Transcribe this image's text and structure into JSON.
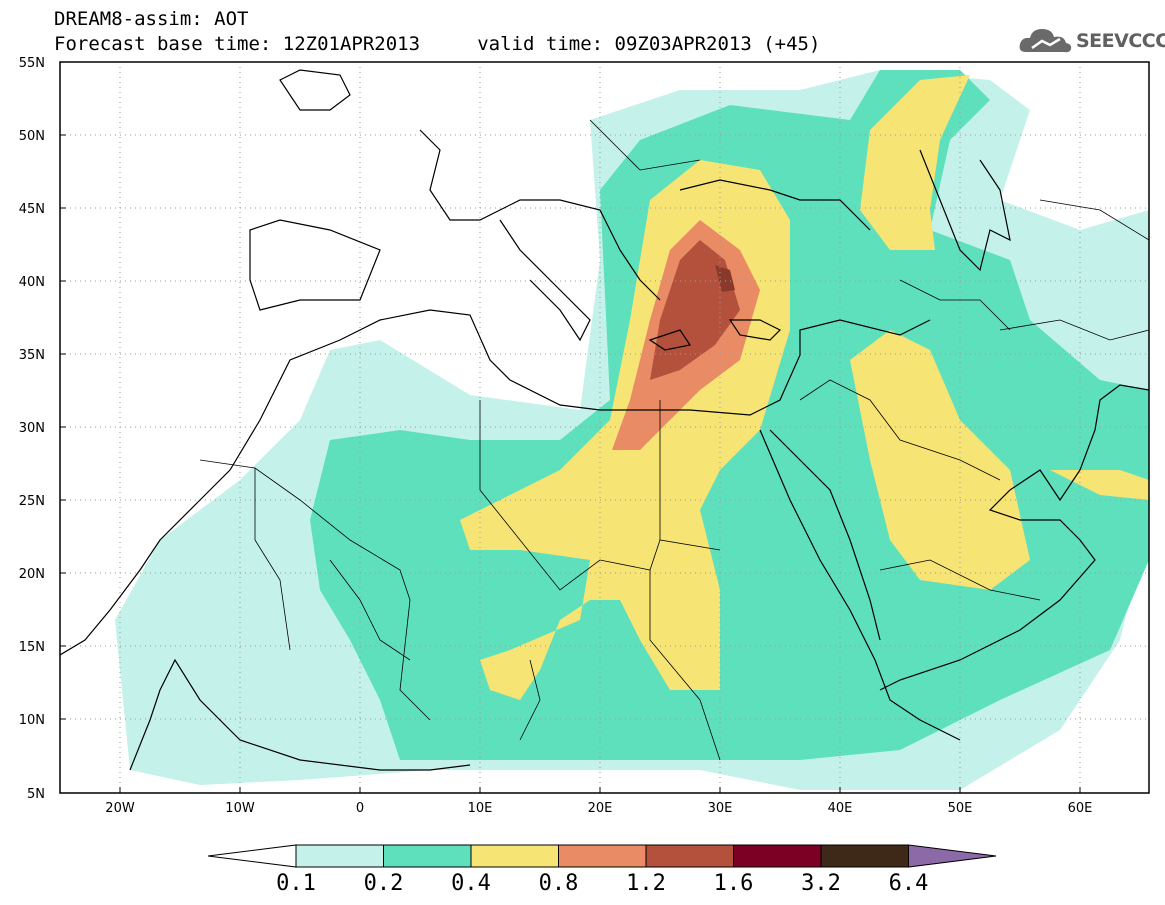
{
  "title": {
    "line1": "DREAM8-assim: AOT",
    "line2": "Forecast base time: 12Z01APR2013     valid time: 09Z03APR2013 (+45)"
  },
  "logo": {
    "text": "SEEVCCC",
    "icon": "cloud-logo-icon"
  },
  "map": {
    "lat_ticks": [
      "55N",
      "50N",
      "45N",
      "40N",
      "35N",
      "30N",
      "25N",
      "20N",
      "15N",
      "10N",
      "5N"
    ],
    "lon_ticks": [
      "20W",
      "10W",
      "0",
      "10E",
      "20E",
      "30E",
      "40E",
      "50E",
      "60E"
    ],
    "lat_range": [
      5,
      55
    ],
    "lon_range": [
      -25,
      65
    ],
    "grid": "dotted"
  },
  "colorbar": {
    "labels": [
      "0.1",
      "0.2",
      "0.4",
      "0.8",
      "1.2",
      "1.6",
      "3.2",
      "6.4"
    ],
    "colors": [
      "#ffffff",
      "#c4f2ea",
      "#5ee0bd",
      "#f6e475",
      "#e98c66",
      "#b4513d",
      "#7c0023",
      "#3e2817",
      "#8c6aa8"
    ]
  }
}
